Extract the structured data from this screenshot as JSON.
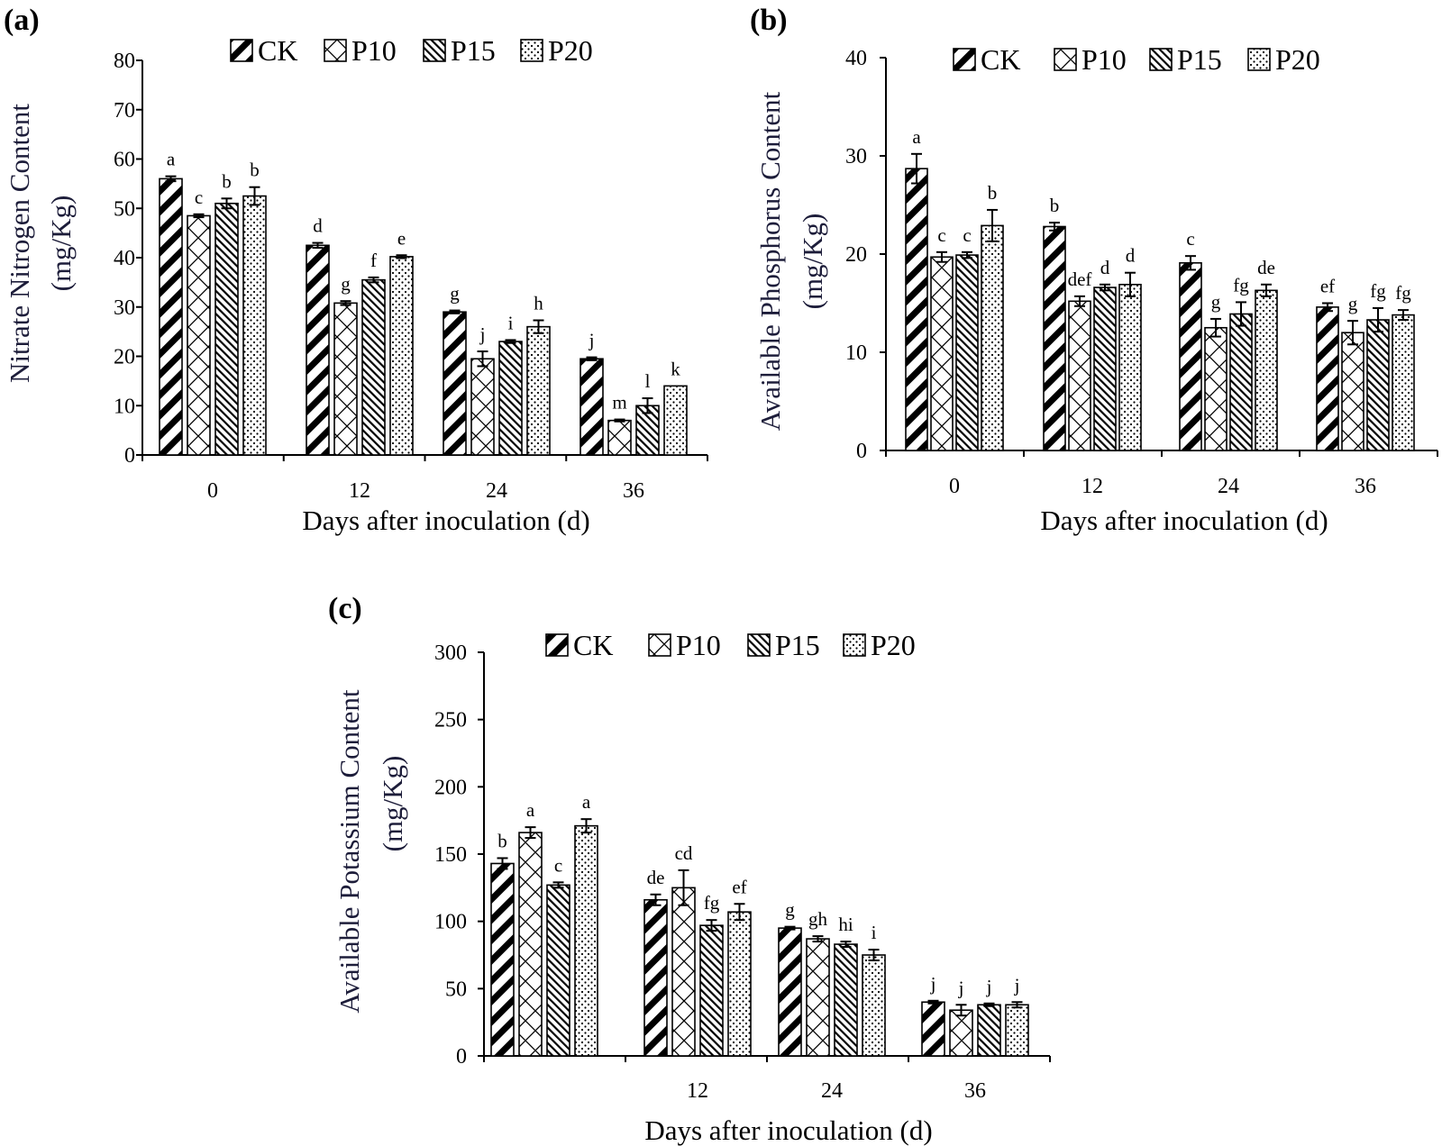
{
  "figure": {
    "legend": [
      "CK",
      "P10",
      "P15",
      "P20"
    ],
    "patterns": [
      "hatch-bold",
      "cross-hatch",
      "hatch-dense",
      "dots"
    ]
  },
  "chart_data": [
    {
      "id": "a",
      "type": "bar",
      "panel_label": "(a)",
      "title": "",
      "xlabel": "Days after inoculation (d)",
      "ylabel_lines": [
        "Nitrate Nitrogen Content",
        "(mg/Kg)"
      ],
      "ylim": [
        0,
        80
      ],
      "yticks": [
        0,
        10,
        20,
        30,
        40,
        50,
        60,
        70,
        80
      ],
      "categories": [
        "0",
        "12",
        "24",
        "36"
      ],
      "series": [
        {
          "name": "CK",
          "values": [
            56,
            42.5,
            29,
            19.5
          ],
          "errors": [
            0.5,
            0.5,
            0.3,
            0.3
          ],
          "letters": [
            "a",
            "d",
            "g",
            "j"
          ]
        },
        {
          "name": "P10",
          "values": [
            48.5,
            30.8,
            19.5,
            7
          ],
          "errors": [
            0.3,
            0.4,
            1.5,
            0.2
          ],
          "letters": [
            "c",
            "g",
            "j",
            "m"
          ]
        },
        {
          "name": "P15",
          "values": [
            51,
            35.5,
            23,
            10
          ],
          "errors": [
            1,
            0.5,
            0.3,
            1.5
          ],
          "letters": [
            "b",
            "f",
            "i",
            "l"
          ]
        },
        {
          "name": "P20",
          "values": [
            52.5,
            40.2,
            26,
            14
          ],
          "errors": [
            1.8,
            0.3,
            1.3,
            0
          ],
          "letters": [
            "b",
            "e",
            "h",
            "k"
          ]
        }
      ]
    },
    {
      "id": "b",
      "type": "bar",
      "panel_label": "(b)",
      "title": "",
      "xlabel": "Days after inoculation (d)",
      "ylabel_lines": [
        "Available Phosphorus Content",
        "(mg/Kg)"
      ],
      "ylim": [
        0,
        40
      ],
      "yticks": [
        0,
        10,
        20,
        30,
        40
      ],
      "categories": [
        "0",
        "12",
        "24",
        "36"
      ],
      "series": [
        {
          "name": "CK",
          "values": [
            28.7,
            22.8,
            19.1,
            14.6
          ],
          "errors": [
            1.5,
            0.4,
            0.7,
            0.4
          ],
          "letters": [
            "a",
            "b",
            "c",
            "ef"
          ]
        },
        {
          "name": "P10",
          "values": [
            19.7,
            15.2,
            12.5,
            12
          ],
          "errors": [
            0.5,
            0.5,
            0.9,
            1.2
          ],
          "letters": [
            "c",
            "def",
            "g",
            "g"
          ]
        },
        {
          "name": "P15",
          "values": [
            19.9,
            16.6,
            13.9,
            13.3
          ],
          "errors": [
            0.3,
            0.3,
            1.2,
            1.2
          ],
          "letters": [
            "c",
            "d",
            "fg",
            "fg"
          ]
        },
        {
          "name": "P20",
          "values": [
            22.9,
            16.9,
            16.3,
            13.8
          ],
          "errors": [
            1.6,
            1.2,
            0.6,
            0.5
          ],
          "letters": [
            "b",
            "d",
            "de",
            "fg"
          ]
        }
      ]
    },
    {
      "id": "c",
      "type": "bar",
      "panel_label": "(c)",
      "title": "",
      "xlabel": "Days after inoculation (d)",
      "ylabel_lines": [
        "Available Potassium Content",
        "(mg/Kg)"
      ],
      "ylim": [
        0,
        300
      ],
      "yticks": [
        0,
        50,
        100,
        150,
        200,
        250,
        300
      ],
      "categories": [
        "",
        "12",
        "24",
        "36"
      ],
      "series": [
        {
          "name": "CK",
          "values": [
            143,
            116,
            95,
            40
          ],
          "errors": [
            4,
            4,
            1,
            1
          ],
          "letters": [
            "b",
            "de",
            "g",
            "j"
          ]
        },
        {
          "name": "P10",
          "values": [
            166,
            125,
            87,
            34
          ],
          "errors": [
            4,
            13,
            2,
            4
          ],
          "letters": [
            "a",
            "cd",
            "gh",
            "j"
          ]
        },
        {
          "name": "P15",
          "values": [
            127,
            97,
            83,
            38
          ],
          "errors": [
            2,
            4,
            2,
            1
          ],
          "letters": [
            "c",
            "fg",
            "hi",
            "j"
          ]
        },
        {
          "name": "P20",
          "values": [
            171,
            107,
            75,
            38
          ],
          "errors": [
            5,
            6,
            4,
            2
          ],
          "letters": [
            "a",
            "ef",
            "i",
            "j"
          ]
        }
      ]
    }
  ]
}
